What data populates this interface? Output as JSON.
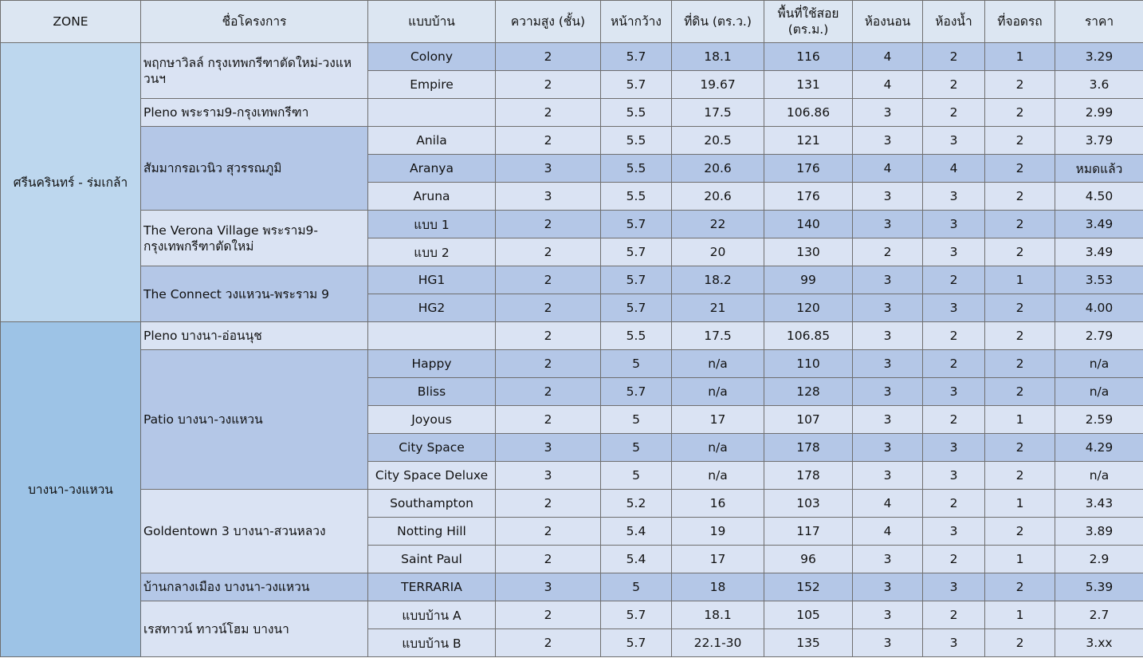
{
  "headers": {
    "zone": "ZONE",
    "project": "ชื่อโครงการ",
    "model": "แบบบ้าน",
    "floors": "ความสูง (ชั้น)",
    "frontage": "หน้ากว้าง",
    "land": "ที่ดิน (ตร.ว.)",
    "area_line1": "พื้นที่ใช้สอย",
    "area_line2": "(ตร.ม.)",
    "bedrooms": "ห้องนอน",
    "bathrooms": "ห้องน้ำ",
    "parking": "ที่จอดรถ",
    "price": "ราคา"
  },
  "zones": {
    "z1": "ศรีนครินทร์ - ร่มเกล้า",
    "z2": "บางนา-วงแหวน"
  },
  "projects": {
    "p1": "พฤกษาวิลล์ กรุงเทพกรีฑาตัดใหม่-วงแหวนฯ",
    "p2": "Pleno พระราม9-กรุงเทพกรีฑา",
    "p3": "สัมมากรอเวนิว สุวรรณภูมิ",
    "p4": "The Verona Village พระราม9-กรุงเทพกรีฑาตัดใหม่",
    "p5": "The Connect วงแหวน-พระราม 9",
    "p6": "Pleno บางนา-อ่อนนุช",
    "p7": "Patio บางนา-วงแหวน",
    "p8": "Goldentown 3 บางนา-สวนหลวง",
    "p9": "บ้านกลางเมือง บางนา-วงแหวน",
    "p10": "เรสทาวน์ ทาวน์โฮม บางนา"
  },
  "rows": [
    {
      "model": "Colony",
      "floors": "2",
      "frontage": "5.7",
      "land": "18.1",
      "area": "116",
      "bed": "4",
      "bath": "2",
      "park": "1",
      "price": "3.29"
    },
    {
      "model": "Empire",
      "floors": "2",
      "frontage": "5.7",
      "land": "19.67",
      "area": "131",
      "bed": "4",
      "bath": "2",
      "park": "2",
      "price": "3.6"
    },
    {
      "model": "",
      "floors": "2",
      "frontage": "5.5",
      "land": "17.5",
      "area": "106.86",
      "bed": "3",
      "bath": "2",
      "park": "2",
      "price": "2.99"
    },
    {
      "model": "Anila",
      "floors": "2",
      "frontage": "5.5",
      "land": "20.5",
      "area": "121",
      "bed": "3",
      "bath": "3",
      "park": "2",
      "price": "3.79"
    },
    {
      "model": "Aranya",
      "floors": "3",
      "frontage": "5.5",
      "land": "20.6",
      "area": "176",
      "bed": "4",
      "bath": "4",
      "park": "2",
      "price": "หมดแล้ว"
    },
    {
      "model": "Aruna",
      "floors": "3",
      "frontage": "5.5",
      "land": "20.6",
      "area": "176",
      "bed": "3",
      "bath": "3",
      "park": "2",
      "price": "4.50"
    },
    {
      "model": "แบบ 1",
      "floors": "2",
      "frontage": "5.7",
      "land": "22",
      "area": "140",
      "bed": "3",
      "bath": "3",
      "park": "2",
      "price": "3.49"
    },
    {
      "model": "แบบ 2",
      "floors": "2",
      "frontage": "5.7",
      "land": "20",
      "area": "130",
      "bed": "2",
      "bath": "3",
      "park": "2",
      "price": "3.49"
    },
    {
      "model": "HG1",
      "floors": "2",
      "frontage": "5.7",
      "land": "18.2",
      "area": "99",
      "bed": "3",
      "bath": "2",
      "park": "1",
      "price": "3.53"
    },
    {
      "model": "HG2",
      "floors": "2",
      "frontage": "5.7",
      "land": "21",
      "area": "120",
      "bed": "3",
      "bath": "3",
      "park": "2",
      "price": "4.00"
    },
    {
      "model": "",
      "floors": "2",
      "frontage": "5.5",
      "land": "17.5",
      "area": "106.85",
      "bed": "3",
      "bath": "2",
      "park": "2",
      "price": "2.79"
    },
    {
      "model": "Happy",
      "floors": "2",
      "frontage": "5",
      "land": "n/a",
      "area": "110",
      "bed": "3",
      "bath": "2",
      "park": "2",
      "price": "n/a"
    },
    {
      "model": "Bliss",
      "floors": "2",
      "frontage": "5.7",
      "land": "n/a",
      "area": "128",
      "bed": "3",
      "bath": "3",
      "park": "2",
      "price": "n/a"
    },
    {
      "model": "Joyous",
      "floors": "2",
      "frontage": "5",
      "land": "17",
      "area": "107",
      "bed": "3",
      "bath": "2",
      "park": "1",
      "price": "2.59"
    },
    {
      "model": "City Space",
      "floors": "3",
      "frontage": "5",
      "land": "n/a",
      "area": "178",
      "bed": "3",
      "bath": "3",
      "park": "2",
      "price": "4.29"
    },
    {
      "model": "City Space Deluxe",
      "floors": "3",
      "frontage": "5",
      "land": "n/a",
      "area": "178",
      "bed": "3",
      "bath": "3",
      "park": "2",
      "price": "n/a"
    },
    {
      "model": "Southampton",
      "floors": "2",
      "frontage": "5.2",
      "land": "16",
      "area": "103",
      "bed": "4",
      "bath": "2",
      "park": "1",
      "price": "3.43"
    },
    {
      "model": "Notting Hill",
      "floors": "2",
      "frontage": "5.4",
      "land": "19",
      "area": "117",
      "bed": "4",
      "bath": "3",
      "park": "2",
      "price": "3.89"
    },
    {
      "model": "Saint Paul",
      "floors": "2",
      "frontage": "5.4",
      "land": "17",
      "area": "96",
      "bed": "3",
      "bath": "2",
      "park": "1",
      "price": "2.9"
    },
    {
      "model": "TERRARIA",
      "floors": "3",
      "frontage": "5",
      "land": "18",
      "area": "152",
      "bed": "3",
      "bath": "3",
      "park": "2",
      "price": "5.39"
    },
    {
      "model": "แบบบ้าน A",
      "floors": "2",
      "frontage": "5.7",
      "land": "18.1",
      "area": "105",
      "bed": "3",
      "bath": "2",
      "park": "1",
      "price": "2.7"
    },
    {
      "model": "แบบบ้าน B",
      "floors": "2",
      "frontage": "5.7",
      "land": "22.1-30",
      "area": "135",
      "bed": "3",
      "bath": "3",
      "park": "2",
      "price": "3.xx"
    }
  ]
}
